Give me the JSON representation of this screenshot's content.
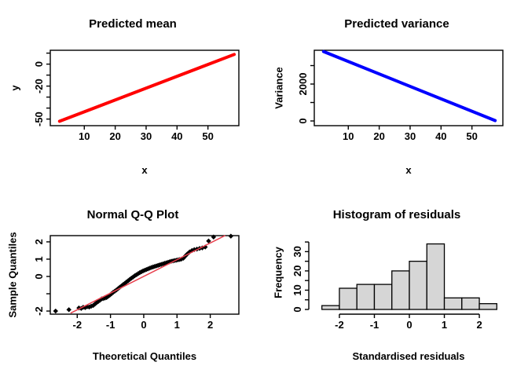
{
  "figure": {
    "background": "#ffffff",
    "layout": "2x2 R base graphics panel"
  },
  "chart_data": [
    {
      "id": "predicted-mean",
      "type": "line",
      "title": "Predicted mean",
      "xlabel": "x",
      "ylabel": "y",
      "color": "#ff0000",
      "line_points": [
        [
          2,
          -52
        ],
        [
          58.5,
          8.8
        ]
      ],
      "xlim": [
        -1,
        60
      ],
      "ylim": [
        -56,
        12.6
      ],
      "box": true,
      "grid": false,
      "xticks": [
        {
          "v": 10,
          "label": "10"
        },
        {
          "v": 20,
          "label": "20"
        },
        {
          "v": 30,
          "label": "30"
        },
        {
          "v": 40,
          "label": "40"
        },
        {
          "v": 50,
          "label": "50"
        }
      ],
      "yticks": [
        {
          "v": 10
        },
        {
          "v": 0,
          "label": "0"
        },
        {
          "v": -10
        },
        {
          "v": -20,
          "label": "-20"
        },
        {
          "v": -30
        },
        {
          "v": -40
        },
        {
          "v": -50,
          "label": "-50"
        }
      ]
    },
    {
      "id": "predicted-variance",
      "type": "line",
      "title": "Predicted variance",
      "xlabel": "x",
      "ylabel": "Variance",
      "color": "#0000ff",
      "line_points": [
        [
          2,
          3760
        ],
        [
          57.5,
          20
        ]
      ],
      "xlim": [
        -1,
        60
      ],
      "ylim": [
        -255,
        3830
      ],
      "box": true,
      "grid": false,
      "xticks": [
        {
          "v": 10,
          "label": "10"
        },
        {
          "v": 20,
          "label": "20"
        },
        {
          "v": 30,
          "label": "30"
        },
        {
          "v": 40,
          "label": "40"
        },
        {
          "v": 50,
          "label": "50"
        }
      ],
      "yticks": [
        {
          "v": 0,
          "label": "0"
        },
        {
          "v": 1000
        },
        {
          "v": 2000,
          "label": "2000"
        },
        {
          "v": 3000
        }
      ]
    },
    {
      "id": "normal-qq-plot",
      "type": "scatter",
      "title": "Normal Q-Q Plot",
      "xlabel": "Theoretical Quantiles",
      "ylabel": "Sample Quantiles",
      "marker": "filled-diamond",
      "point_color": "#000000",
      "ref_line": {
        "from": [
          -2.2,
          -2.12
        ],
        "to": [
          2.45,
          2.37
        ],
        "color": "#e8404e"
      },
      "xlim": [
        -2.81,
        2.86
      ],
      "ylim": [
        -2.18,
        2.36
      ],
      "box": true,
      "grid": false,
      "xticks": [
        {
          "v": -2,
          "label": "-2"
        },
        {
          "v": -1,
          "label": "-1"
        },
        {
          "v": 0,
          "label": "0"
        },
        {
          "v": 1,
          "label": "1"
        },
        {
          "v": 2,
          "label": "2"
        }
      ],
      "yticks": [
        {
          "v": -2,
          "label": "-2"
        },
        {
          "v": -1
        },
        {
          "v": 0,
          "label": "0"
        },
        {
          "v": 1,
          "label": "1"
        },
        {
          "v": 2,
          "label": "2"
        }
      ],
      "points": [
        [
          -2.65,
          -2.0
        ],
        [
          -2.25,
          -1.92
        ],
        [
          -1.95,
          -1.82
        ],
        [
          -1.88,
          -1.85
        ],
        [
          -1.82,
          -1.78
        ],
        [
          -1.76,
          -1.8
        ],
        [
          -1.7,
          -1.75
        ],
        [
          -1.64,
          -1.77
        ],
        [
          -1.58,
          -1.72
        ],
        [
          -1.52,
          -1.68
        ],
        [
          -1.47,
          -1.6
        ],
        [
          -1.42,
          -1.52
        ],
        [
          -1.37,
          -1.45
        ],
        [
          -1.32,
          -1.38
        ],
        [
          -1.27,
          -1.3
        ],
        [
          -1.22,
          -1.28
        ],
        [
          -1.17,
          -1.25
        ],
        [
          -1.12,
          -1.22
        ],
        [
          -1.07,
          -1.15
        ],
        [
          -1.02,
          -1.08
        ],
        [
          -0.97,
          -1.0
        ],
        [
          -0.92,
          -0.92
        ],
        [
          -0.87,
          -0.85
        ],
        [
          -0.82,
          -0.78
        ],
        [
          -0.77,
          -0.7
        ],
        [
          -0.72,
          -0.62
        ],
        [
          -0.67,
          -0.55
        ],
        [
          -0.62,
          -0.47
        ],
        [
          -0.57,
          -0.4
        ],
        [
          -0.52,
          -0.32
        ],
        [
          -0.47,
          -0.25
        ],
        [
          -0.42,
          -0.17
        ],
        [
          -0.37,
          -0.1
        ],
        [
          -0.32,
          -0.03
        ],
        [
          -0.27,
          0.04
        ],
        [
          -0.22,
          0.1
        ],
        [
          -0.17,
          0.16
        ],
        [
          -0.12,
          0.22
        ],
        [
          -0.07,
          0.27
        ],
        [
          -0.02,
          0.32
        ],
        [
          0.03,
          0.36
        ],
        [
          0.08,
          0.4
        ],
        [
          0.13,
          0.44
        ],
        [
          0.18,
          0.48
        ],
        [
          0.23,
          0.52
        ],
        [
          0.28,
          0.55
        ],
        [
          0.33,
          0.58
        ],
        [
          0.38,
          0.61
        ],
        [
          0.43,
          0.64
        ],
        [
          0.48,
          0.67
        ],
        [
          0.53,
          0.7
        ],
        [
          0.58,
          0.73
        ],
        [
          0.63,
          0.76
        ],
        [
          0.68,
          0.79
        ],
        [
          0.73,
          0.82
        ],
        [
          0.78,
          0.85
        ],
        [
          0.83,
          0.88
        ],
        [
          0.88,
          0.9
        ],
        [
          0.93,
          0.92
        ],
        [
          0.98,
          0.94
        ],
        [
          1.03,
          0.96
        ],
        [
          1.08,
          0.98
        ],
        [
          1.13,
          1.0
        ],
        [
          1.19,
          1.05
        ],
        [
          1.25,
          1.18
        ],
        [
          1.31,
          1.3
        ],
        [
          1.38,
          1.42
        ],
        [
          1.45,
          1.5
        ],
        [
          1.52,
          1.55
        ],
        [
          1.6,
          1.58
        ],
        [
          1.68,
          1.62
        ],
        [
          1.76,
          1.65
        ],
        [
          1.85,
          1.7
        ],
        [
          1.95,
          2.05
        ],
        [
          2.1,
          2.28
        ],
        [
          2.62,
          2.33
        ]
      ]
    },
    {
      "id": "histogram-of-residuals",
      "type": "bar",
      "title": "Histogram of residuals",
      "xlabel": "Standardised residuals",
      "ylabel": "Frequency",
      "bin_start": -2.5,
      "bin_width": 0.5,
      "counts": [
        2,
        11,
        13,
        13,
        20,
        25,
        34,
        6,
        6,
        3
      ],
      "fill": "#d6d6d6",
      "stroke": "#000000",
      "xlim": [
        -2.74,
        2.65
      ],
      "ylim": [
        0,
        38.3
      ],
      "box": false,
      "grid": false,
      "xticks": [
        {
          "v": -2,
          "label": "-2"
        },
        {
          "v": -1,
          "label": "-1"
        },
        {
          "v": 0,
          "label": "0"
        },
        {
          "v": 1,
          "label": "1"
        },
        {
          "v": 2,
          "label": "2"
        }
      ],
      "yticks": [
        {
          "v": 0,
          "label": "0"
        },
        {
          "v": 5
        },
        {
          "v": 10,
          "label": "10"
        },
        {
          "v": 15
        },
        {
          "v": 20,
          "label": "20"
        },
        {
          "v": 25
        },
        {
          "v": 30,
          "label": "30"
        },
        {
          "v": 35
        }
      ]
    }
  ]
}
